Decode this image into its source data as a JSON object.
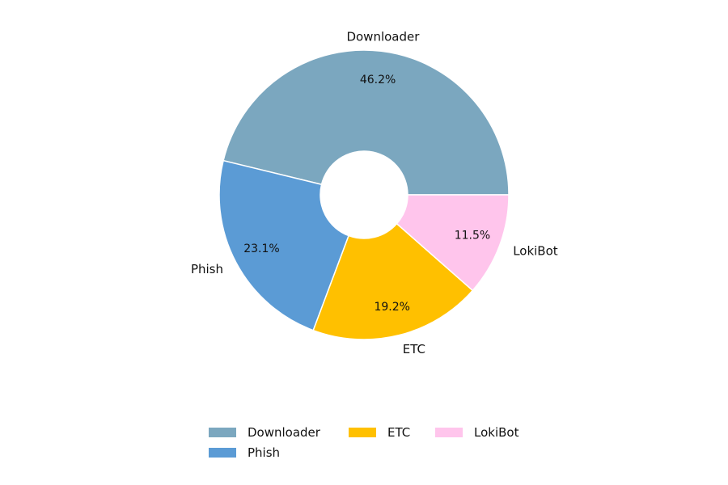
{
  "chart_data": {
    "type": "pie",
    "donut": true,
    "categories": [
      "Downloader",
      "Phish",
      "ETC",
      "LokiBot"
    ],
    "values": [
      46.2,
      23.1,
      19.2,
      11.5
    ],
    "percent_labels": [
      "46.2%",
      "23.1%",
      "19.2%",
      "11.5%"
    ],
    "colors": [
      "#7BA7BF",
      "#5B9BD5",
      "#FFC000",
      "#FFC5EC"
    ],
    "start_angle_deg": 0,
    "direction": "counterclockwise",
    "legend_position": "bottom-center"
  },
  "legend": {
    "items": [
      {
        "label": "Downloader",
        "color": "#7BA7BF"
      },
      {
        "label": "Phish",
        "color": "#5B9BD5"
      },
      {
        "label": "ETC",
        "color": "#FFC000"
      },
      {
        "label": "LokiBot",
        "color": "#FFC5EC"
      }
    ]
  }
}
